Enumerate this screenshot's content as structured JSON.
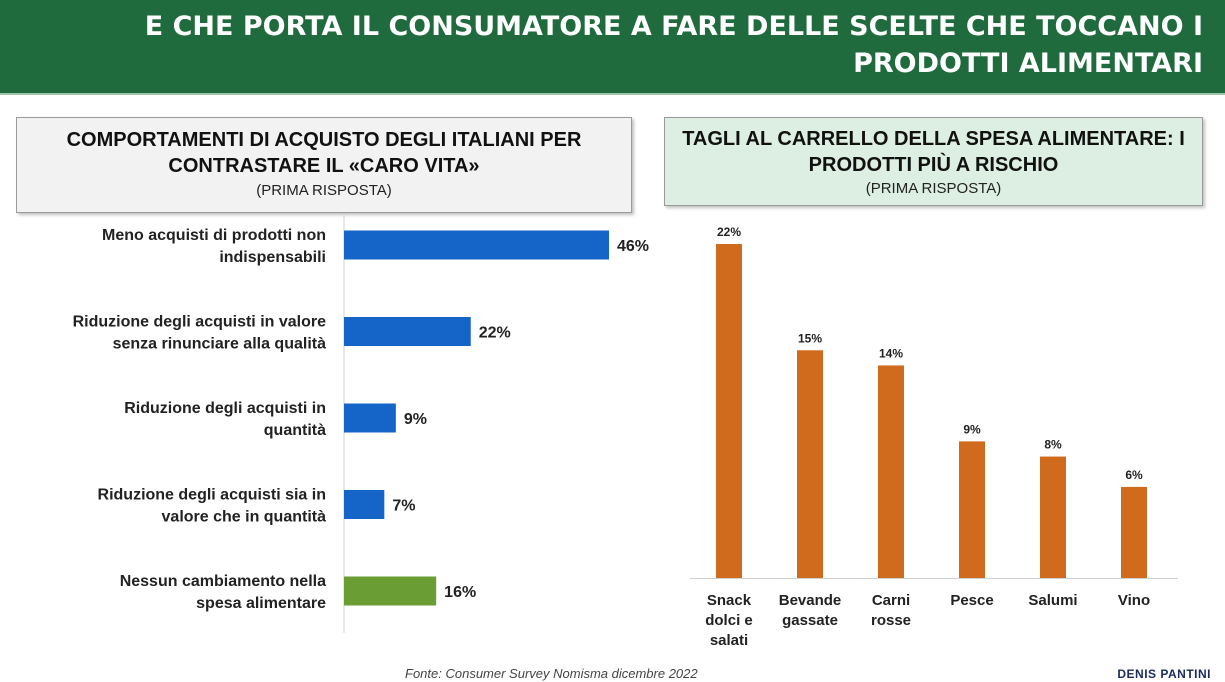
{
  "header": {
    "title": "E CHE PORTA IL CONSUMATORE A FARE DELLE SCELTE CHE TOCCANO I PRODOTTI ALIMENTARI"
  },
  "left_box": {
    "title": "COMPORTAMENTI DI ACQUISTO DEGLI ITALIANI PER CONTRASTARE IL «CARO VITA»",
    "subtitle": "(PRIMA RISPOSTA)"
  },
  "right_box": {
    "title": "TAGLI AL CARRELLO DELLA SPESA ALIMENTARE: I PRODOTTI PIÙ A RISCHIO",
    "subtitle": "(PRIMA RISPOSTA)"
  },
  "colors": {
    "header": "#1f6b3d",
    "blue": "#1565c8",
    "green": "#6a9e35",
    "orange": "#d06a1d"
  },
  "chart_data": [
    {
      "type": "bar",
      "orientation": "horizontal",
      "categories": [
        [
          "Meno acquisti di prodotti non",
          "indispensabili"
        ],
        [
          "Riduzione degli acquisti in valore",
          "senza rinunciare alla qualità"
        ],
        [
          "Riduzione degli acquisti in",
          "quantità"
        ],
        [
          "Riduzione degli acquisti sia in",
          "valore che in quantità"
        ],
        [
          "Nessun cambiamento nella",
          "spesa alimentare"
        ]
      ],
      "values": [
        46,
        22,
        9,
        7,
        16
      ],
      "labels": [
        "46%",
        "22%",
        "9%",
        "7%",
        "16%"
      ],
      "highlight": [
        false,
        false,
        false,
        false,
        true
      ]
    },
    {
      "type": "bar",
      "orientation": "vertical",
      "categories": [
        [
          "Snack",
          "dolci e",
          "salati"
        ],
        [
          "Bevande",
          "gassate"
        ],
        [
          "Carni",
          "rosse"
        ],
        [
          "Pesce"
        ],
        [
          "Salumi"
        ],
        [
          "Vino"
        ]
      ],
      "values": [
        22,
        15,
        14,
        9,
        8,
        6
      ],
      "labels": [
        "22%",
        "15%",
        "14%",
        "9%",
        "8%",
        "6%"
      ]
    }
  ],
  "footer": {
    "source": "Fonte: Consumer Survey Nomisma dicembre 2022",
    "brand": "DENIS PANTINI"
  }
}
